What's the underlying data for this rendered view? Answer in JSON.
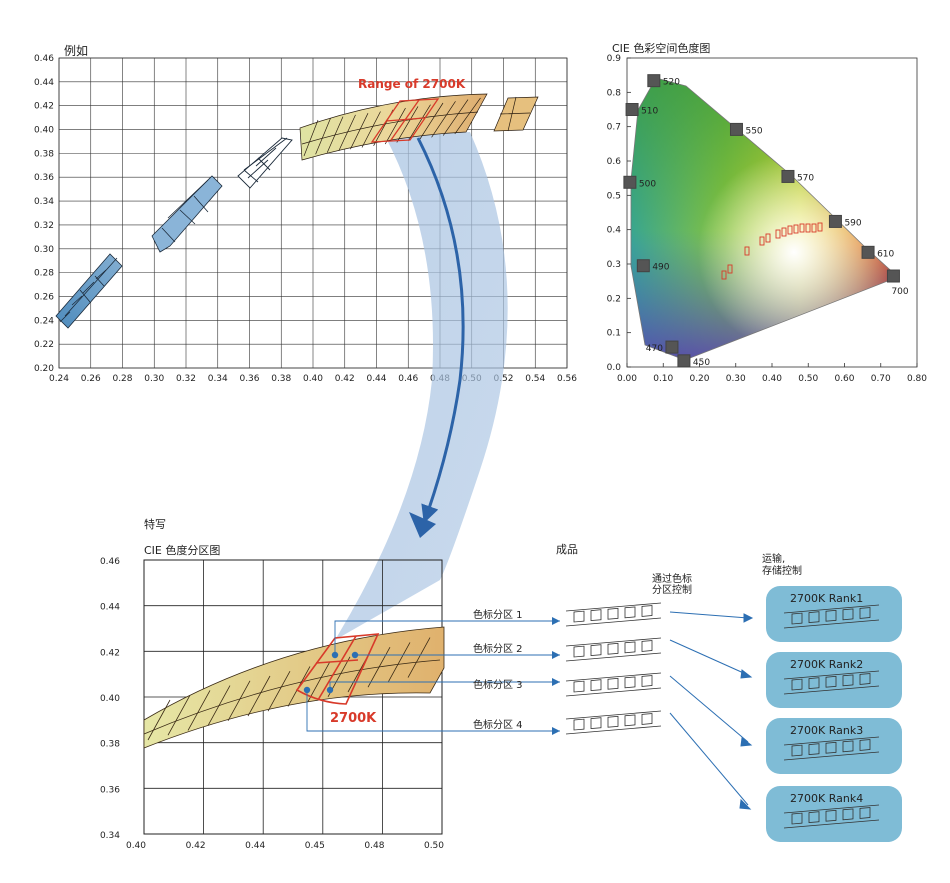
{
  "top_left_chart": {
    "title": "例如",
    "annotation": "Range of 2700K",
    "x_ticks": [
      "0.24",
      "0.26",
      "0.28",
      "0.30",
      "0.32",
      "0.34",
      "0.36",
      "0.38",
      "0.40",
      "0.42",
      "0.44",
      "0.46",
      "0.48",
      "0.50",
      "0.52",
      "0.54",
      "0.56"
    ],
    "y_ticks": [
      "0.46",
      "0.44",
      "0.42",
      "0.40",
      "0.38",
      "0.36",
      "0.34",
      "0.32",
      "0.30",
      "0.28",
      "0.26",
      "0.24",
      "0.22",
      "0.20"
    ]
  },
  "cie_chart": {
    "title": "CIE 色彩空间色度图",
    "x_ticks": [
      "0.00",
      "0.10",
      "0.20",
      "0.30",
      "0.40",
      "0.50",
      "0.60",
      "0.70",
      "0.80"
    ],
    "y_ticks": [
      "0.9",
      "0.8",
      "0.7",
      "0.6",
      "0.5",
      "0.4",
      "0.3",
      "0.2",
      "0.1",
      "0.0"
    ],
    "wavelengths": [
      {
        "label": "520",
        "x": 0.074,
        "y": 0.834
      },
      {
        "label": "510",
        "x": 0.014,
        "y": 0.75
      },
      {
        "label": "550",
        "x": 0.302,
        "y": 0.692
      },
      {
        "label": "500",
        "x": 0.008,
        "y": 0.538
      },
      {
        "label": "570",
        "x": 0.444,
        "y": 0.555
      },
      {
        "label": "590",
        "x": 0.575,
        "y": 0.424
      },
      {
        "label": "610",
        "x": 0.665,
        "y": 0.334
      },
      {
        "label": "490",
        "x": 0.045,
        "y": 0.295
      },
      {
        "label": "700",
        "x": 0.735,
        "y": 0.265
      },
      {
        "label": "470",
        "x": 0.124,
        "y": 0.058
      },
      {
        "label": "450",
        "x": 0.157,
        "y": 0.018
      }
    ]
  },
  "closeup": {
    "heading": "特写",
    "title": "CIE 色度分区图",
    "label_2700k": "2700K",
    "x_ticks": [
      "0.40",
      "0.42",
      "0.44",
      "0.45",
      "0.48",
      "0.50"
    ],
    "y_ticks": [
      "0.46",
      "0.44",
      "0.42",
      "0.40",
      "0.38",
      "0.36",
      "0.34"
    ]
  },
  "product": {
    "heading": "成品",
    "control_label": "通过色标\n分区控制",
    "zones": [
      "色标分区 1",
      "色标分区 2",
      "色标分区 3",
      "色标分区 4"
    ]
  },
  "transport": {
    "heading": "运输,\n存储控制",
    "ranks": [
      "2700K Rank1",
      "2700K Rank2",
      "2700K Rank3",
      "2700K Rank4"
    ]
  },
  "colors": {
    "accent_red": "#d83a2a",
    "arrow_blue": "#2c63a8",
    "band_blue": "#b9cfe6",
    "card_blue": "#7fbcd6",
    "bin_blue": "#5a94c0",
    "bin_tan": "#e0c07e"
  }
}
